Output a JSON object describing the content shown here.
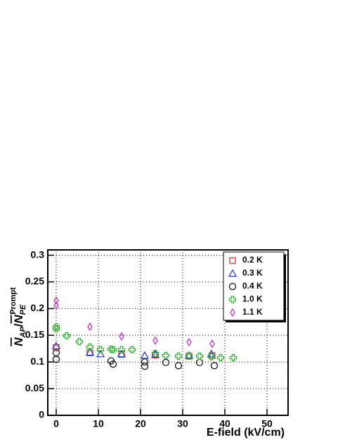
{
  "chart_data": {
    "type": "scatter",
    "ylabel": {
      "n1": "N",
      "sub1": "AP",
      "slash": "/",
      "n2": "N",
      "sub2": "PE",
      "sup2": "Prompt"
    },
    "xlabel": "E-field (kV/cm)",
    "xlim": [
      -2,
      55
    ],
    "xticks": [
      0,
      10,
      20,
      30,
      40,
      50
    ],
    "ylim": [
      0,
      0.31
    ],
    "yticks": [
      0,
      0.05,
      0.1,
      0.15,
      0.2,
      0.25,
      0.3
    ],
    "grid": true,
    "legend": "upper right",
    "series": [
      {
        "name": "0.2 K",
        "color": "#e8201e",
        "marker": "square",
        "x": [
          0,
          8,
          15.5,
          23.5,
          31.5,
          37
        ],
        "values": [
          0.127,
          0.117,
          0.114,
          0.113,
          0.111,
          0.112
        ]
      },
      {
        "name": "0.3 K",
        "color": "#2030e0",
        "marker": "triangle",
        "x": [
          0,
          8,
          10.5,
          15.5,
          21,
          23.5,
          31.5,
          36.8
        ],
        "values": [
          0.13,
          0.118,
          0.115,
          0.115,
          0.112,
          0.114,
          0.112,
          0.115
        ]
      },
      {
        "name": "0.4 K",
        "color": "#000000",
        "marker": "circle",
        "x": [
          0,
          0,
          13,
          13.5,
          21,
          21,
          26,
          29,
          34,
          37.5
        ],
        "values": [
          0.117,
          0.105,
          0.102,
          0.096,
          0.1,
          0.092,
          0.099,
          0.093,
          0.099,
          0.093
        ]
      },
      {
        "name": "1.0 K",
        "color": "#22b020",
        "marker": "cross",
        "x": [
          0,
          0,
          2.5,
          5.5,
          8,
          10.5,
          13,
          13.5,
          15.5,
          18,
          23.5,
          26,
          29,
          31.5,
          34,
          36.8,
          39,
          42
        ],
        "values": [
          0.166,
          0.162,
          0.149,
          0.138,
          0.128,
          0.123,
          0.124,
          0.123,
          0.123,
          0.123,
          0.116,
          0.112,
          0.111,
          0.111,
          0.111,
          0.11,
          0.108,
          0.108
        ]
      },
      {
        "name": "1.1 K",
        "color": "#d020d0",
        "marker": "diamond",
        "x": [
          0,
          0,
          8,
          15.5,
          23.5,
          31.5,
          37
        ],
        "values": [
          0.215,
          0.205,
          0.166,
          0.148,
          0.14,
          0.137,
          0.134
        ]
      }
    ]
  }
}
